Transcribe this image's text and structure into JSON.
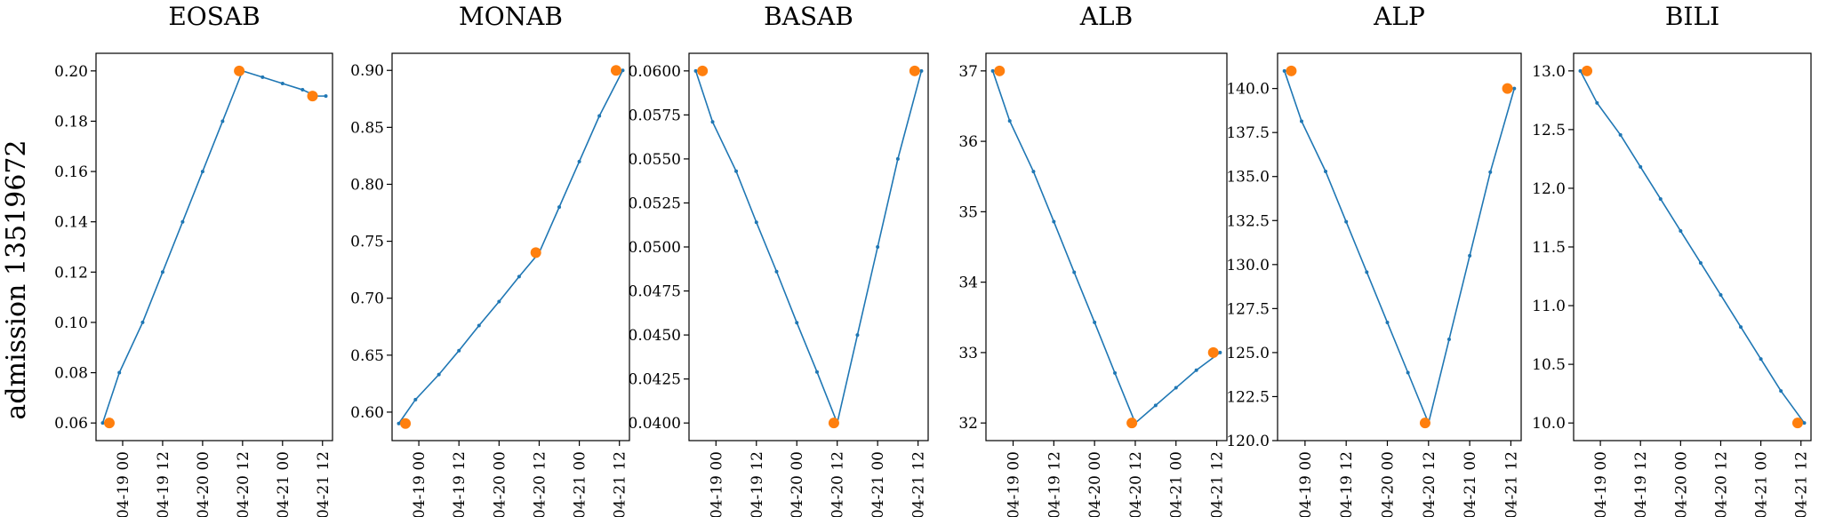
{
  "row_label": "admission 13519672",
  "colors": {
    "line": "#1f77b4",
    "observed": "#ff7f0e",
    "frame": "#000000"
  },
  "chart_data": [
    {
      "type": "line",
      "title": "EOSAB",
      "xlabel": "",
      "ylabel": "",
      "x_ticks": [
        "04-19 00",
        "04-19 12",
        "04-20 00",
        "04-20 12",
        "04-21 00",
        "04-21 12"
      ],
      "y_ticks": [
        "0.06",
        "0.08",
        "0.10",
        "0.12",
        "0.14",
        "0.16",
        "0.18",
        "0.20"
      ],
      "xlim": [
        "04-18 16",
        "04-21 15"
      ],
      "ylim": [
        0.053,
        0.207
      ],
      "grid": false,
      "series": [
        {
          "role": "interpolated",
          "x": [
            "04-18 18",
            "04-18 23",
            "04-19 06",
            "04-19 12",
            "04-19 18",
            "04-20 00",
            "04-20 06",
            "04-20 12",
            "04-20 18",
            "04-21 00",
            "04-21 06",
            "04-21 10",
            "04-21 13"
          ],
          "y": [
            0.06,
            0.08,
            0.1,
            0.12,
            0.14,
            0.16,
            0.18,
            0.2,
            0.1975,
            0.195,
            0.1925,
            0.19,
            0.19
          ]
        },
        {
          "role": "observed",
          "x": [
            "04-18 20",
            "04-20 11",
            "04-21 09"
          ],
          "y": [
            0.06,
            0.2,
            0.19
          ]
        }
      ]
    },
    {
      "type": "line",
      "title": "MONAB",
      "xlabel": "",
      "ylabel": "",
      "x_ticks": [
        "04-19 00",
        "04-19 12",
        "04-20 00",
        "04-20 12",
        "04-21 00",
        "04-21 12"
      ],
      "y_ticks": [
        "0.60",
        "0.65",
        "0.70",
        "0.75",
        "0.80",
        "0.85",
        "0.90"
      ],
      "xlim": [
        "04-18 16",
        "04-21 15"
      ],
      "ylim": [
        0.575,
        0.915
      ],
      "grid": false,
      "series": [
        {
          "role": "interpolated",
          "x": [
            "04-18 18",
            "04-18 23",
            "04-19 06",
            "04-19 12",
            "04-19 18",
            "04-20 00",
            "04-20 06",
            "04-20 12",
            "04-20 18",
            "04-21 00",
            "04-21 06",
            "04-21 13"
          ],
          "y": [
            0.59,
            0.611,
            0.633,
            0.654,
            0.676,
            0.697,
            0.719,
            0.74,
            0.78,
            0.82,
            0.86,
            0.9
          ]
        },
        {
          "role": "observed",
          "x": [
            "04-18 20",
            "04-20 11",
            "04-21 11"
          ],
          "y": [
            0.59,
            0.74,
            0.9
          ]
        }
      ]
    },
    {
      "type": "line",
      "title": "BASAB",
      "xlabel": "",
      "ylabel": "",
      "x_ticks": [
        "04-19 00",
        "04-19 12",
        "04-20 00",
        "04-20 12",
        "04-21 00",
        "04-21 12"
      ],
      "y_ticks": [
        "0.0400",
        "0.0425",
        "0.0450",
        "0.0475",
        "0.0500",
        "0.0525",
        "0.0550",
        "0.0575",
        "0.0600"
      ],
      "xlim": [
        "04-18 16",
        "04-21 15"
      ],
      "ylim": [
        0.039,
        0.061
      ],
      "grid": false,
      "series": [
        {
          "role": "interpolated",
          "x": [
            "04-18 18",
            "04-18 23",
            "04-19 06",
            "04-19 12",
            "04-19 18",
            "04-20 00",
            "04-20 06",
            "04-20 12",
            "04-20 18",
            "04-21 00",
            "04-21 06",
            "04-21 13"
          ],
          "y": [
            0.06,
            0.0571,
            0.0543,
            0.0514,
            0.0486,
            0.0457,
            0.0429,
            0.04,
            0.045,
            0.05,
            0.055,
            0.06
          ]
        },
        {
          "role": "observed",
          "x": [
            "04-18 20",
            "04-20 11",
            "04-21 11"
          ],
          "y": [
            0.06,
            0.04,
            0.06
          ]
        }
      ]
    },
    {
      "type": "line",
      "title": "ALB",
      "xlabel": "",
      "ylabel": "",
      "x_ticks": [
        "04-19 00",
        "04-19 12",
        "04-20 00",
        "04-20 12",
        "04-21 00",
        "04-21 12"
      ],
      "y_ticks": [
        "32",
        "33",
        "34",
        "35",
        "36",
        "37"
      ],
      "xlim": [
        "04-18 16",
        "04-21 15"
      ],
      "ylim": [
        31.75,
        37.25
      ],
      "grid": false,
      "series": [
        {
          "role": "interpolated",
          "x": [
            "04-18 18",
            "04-18 23",
            "04-19 06",
            "04-19 12",
            "04-19 18",
            "04-20 00",
            "04-20 06",
            "04-20 12",
            "04-20 18",
            "04-21 00",
            "04-21 06",
            "04-21 13"
          ],
          "y": [
            37,
            36.29,
            35.57,
            34.86,
            34.14,
            33.43,
            32.71,
            32,
            32.25,
            32.5,
            32.75,
            33
          ]
        },
        {
          "role": "observed",
          "x": [
            "04-18 20",
            "04-20 11",
            "04-21 11"
          ],
          "y": [
            37,
            32,
            33
          ]
        }
      ]
    },
    {
      "type": "line",
      "title": "ALP",
      "xlabel": "",
      "ylabel": "",
      "x_ticks": [
        "04-19 00",
        "04-19 12",
        "04-20 00",
        "04-20 12",
        "04-21 00",
        "04-21 12"
      ],
      "y_ticks": [
        "120.0",
        "122.5",
        "125.0",
        "127.5",
        "130.0",
        "132.5",
        "135.0",
        "137.5",
        "140.0"
      ],
      "xlim": [
        "04-18 16",
        "04-21 15"
      ],
      "ylim": [
        120,
        142
      ],
      "grid": false,
      "series": [
        {
          "role": "interpolated",
          "x": [
            "04-18 18",
            "04-18 23",
            "04-19 06",
            "04-19 12",
            "04-19 18",
            "04-20 00",
            "04-20 06",
            "04-20 12",
            "04-20 18",
            "04-21 00",
            "04-21 06",
            "04-21 13"
          ],
          "y": [
            141,
            138.14,
            135.29,
            132.43,
            129.57,
            126.71,
            123.86,
            121,
            125.75,
            130.5,
            135.25,
            140
          ]
        },
        {
          "role": "observed",
          "x": [
            "04-18 20",
            "04-20 11",
            "04-21 11"
          ],
          "y": [
            141,
            121,
            140
          ]
        }
      ]
    },
    {
      "type": "line",
      "title": "BILI",
      "xlabel": "",
      "ylabel": "",
      "x_ticks": [
        "04-19 00",
        "04-19 12",
        "04-20 00",
        "04-20 12",
        "04-21 00",
        "04-21 12"
      ],
      "y_ticks": [
        "10.0",
        "10.5",
        "11.0",
        "11.5",
        "12.0",
        "12.5",
        "13.0"
      ],
      "xlim": [
        "04-18 16",
        "04-21 15"
      ],
      "ylim": [
        9.85,
        13.15
      ],
      "grid": false,
      "series": [
        {
          "role": "interpolated",
          "x": [
            "04-18 18",
            "04-18 23",
            "04-19 06",
            "04-19 12",
            "04-19 18",
            "04-20 00",
            "04-20 06",
            "04-20 12",
            "04-20 18",
            "04-21 00",
            "04-21 06",
            "04-21 13"
          ],
          "y": [
            13,
            12.727,
            12.455,
            12.182,
            11.909,
            11.636,
            11.364,
            11.091,
            10.818,
            10.545,
            10.273,
            10
          ]
        },
        {
          "role": "observed",
          "x": [
            "04-18 20",
            "04-21 11"
          ],
          "y": [
            13,
            10
          ]
        }
      ]
    }
  ]
}
